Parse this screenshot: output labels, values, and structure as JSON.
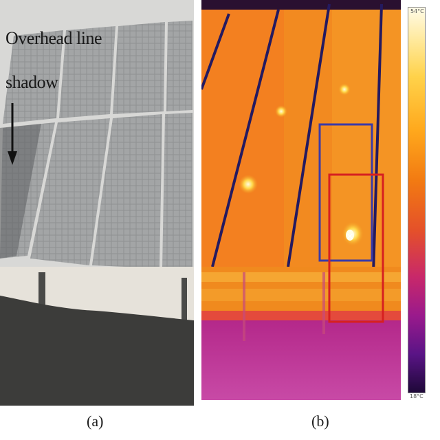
{
  "panel_a": {
    "annotation_line1": "Overhead line",
    "annotation_line2": "shadow",
    "caption": "(a)"
  },
  "panel_b": {
    "caption": "(b)",
    "scale_max": "54°C",
    "scale_min": "18°C"
  }
}
